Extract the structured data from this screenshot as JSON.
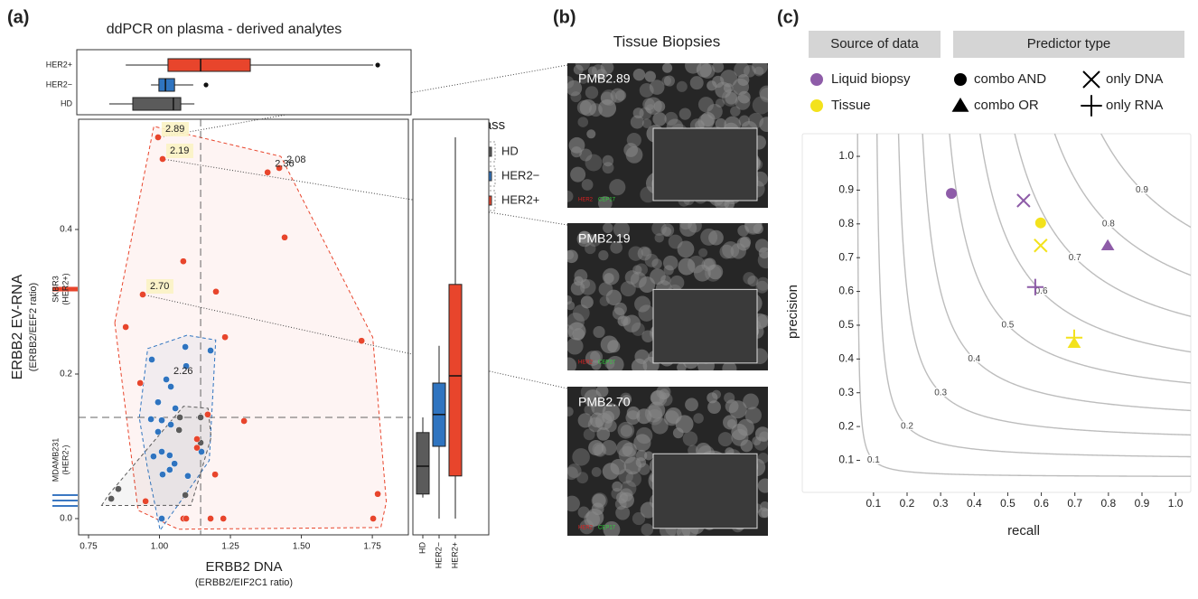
{
  "panel_labels": [
    "(a)",
    "(b)",
    "(c)"
  ],
  "chart_data": [
    {
      "type": "scatter",
      "title": "ddPCR on plasma - derived analytes",
      "x_label": "ERBB2 DNA",
      "x_sublabel": "(ERBB2/EIF2C1 ratio)",
      "y_label": "ERBB2 EV-RNA",
      "y_sublabel": "(ERBB2/EEF2 ratio)",
      "xlim": [
        0.715,
        1.877
      ],
      "ylim": [
        -0.0225,
        0.5525
      ],
      "xticks": [
        0.75,
        {
          "value": 1,
          "label": "1.00"
        },
        1.25,
        {
          "value": 1.5,
          "label": "1.50"
        },
        1.75
      ],
      "yticks": [
        {
          "value": 0,
          "label": "0.0"
        },
        0.2,
        0.4
      ],
      "threshold_x": 1.145,
      "threshold_y": 0.14,
      "legend_title": "class",
      "series": [
        {
          "name": "HD",
          "color": "#5b5b5b",
          "x": [
            1.072,
            1.145,
            1.069,
            1.145,
            0.855,
            0.83,
            1.091
          ],
          "values": [
            0.14,
            0.14,
            0.1225,
            0.105,
            0.041,
            0.0275,
            0.0325
          ],
          "point_labels": [
            null,
            null,
            null,
            null,
            null,
            null,
            null
          ]
        },
        {
          "name": "HER2−",
          "color": "#2f74c0",
          "x": [
            1.091,
            1.18,
            0.973,
            1.094,
            1.024,
            1.04,
            0.995,
            1.056,
            0.97,
            1.008,
            1.04,
            0.995,
            1.008,
            1.036,
            0.979,
            1.053,
            1.011,
            1.036,
            1.008,
            1.148,
            1.1
          ],
          "values": [
            0.2375,
            0.2325,
            0.22,
            0.211,
            0.1925,
            0.1825,
            0.161,
            0.1525,
            0.1375,
            0.136,
            0.13,
            0.12,
            0.0925,
            0.0875,
            0.086,
            0.076,
            0.061,
            0.0675,
            0.0,
            0.0925,
            0.059
          ],
          "point_labels": [
            null,
            null,
            null,
            null,
            "2.26",
            null,
            null,
            null,
            null,
            null,
            null,
            null,
            null,
            null,
            null,
            null,
            null,
            null,
            null,
            null,
            null
          ]
        },
        {
          "name": "HER2+",
          "color": "#e8452c",
          "x": [
            0.995,
            1.011,
            1.381,
            1.422,
            1.441,
            1.084,
            0.941,
            1.199,
            0.881,
            1.231,
            1.712,
            0.932,
            1.17,
            1.298,
            1.132,
            1.132,
            1.196,
            0.951,
            1.084,
            1.094,
            1.18,
            1.225,
            1.769,
            1.753
          ],
          "values": [
            0.5275,
            0.4975,
            0.479,
            0.485,
            0.389,
            0.356,
            0.31,
            0.314,
            0.265,
            0.251,
            0.246,
            0.1875,
            0.144,
            0.135,
            0.11,
            0.098,
            0.061,
            0.024,
            0.0,
            0.0,
            0.0,
            0.0,
            0.034,
            0.0
          ],
          "point_labels": [
            "2.89",
            "2.19",
            "2.36",
            "2.08",
            null,
            null,
            "2.70",
            null,
            null,
            null,
            null,
            null,
            null,
            null,
            null,
            null,
            null,
            null,
            null,
            null,
            null,
            null,
            null,
            null
          ]
        }
      ],
      "reference_lines": [
        {
          "name": "SKBR3",
          "note": "(HER2+)",
          "color": "#e8452c",
          "values": [
            0.3175
          ]
        },
        {
          "name": "MDAMB231",
          "note": "(HER2-)",
          "color": "#3b78c2",
          "values": [
            0.0325,
            0.025,
            0.0175
          ]
        }
      ]
    },
    {
      "type": "box",
      "orientation": "horizontal",
      "xlim": [
        0.715,
        1.877
      ],
      "series": [
        {
          "name": "HD",
          "color": "#5b5b5b",
          "min": 0.823,
          "q1": 0.906,
          "median": 1.049,
          "q3": 1.075,
          "max": 1.123,
          "outliers": []
        },
        {
          "name": "HER2−",
          "color": "#2f74c0",
          "min": 0.97,
          "q1": 0.998,
          "median": 1.021,
          "q3": 1.053,
          "max": 1.119,
          "outliers": [
            1.164
          ]
        },
        {
          "name": "HER2+",
          "color": "#e8452c",
          "min": 0.881,
          "q1": 1.03,
          "median": 1.145,
          "q3": 1.32,
          "max": 1.753,
          "outliers": [
            1.769
          ]
        }
      ]
    },
    {
      "type": "box",
      "orientation": "vertical",
      "ylim": [
        -0.0225,
        0.5525
      ],
      "series": [
        {
          "name": "HD",
          "color": "#5b5b5b",
          "min": 0.029,
          "q1": 0.034,
          "median": 0.0725,
          "q3": 0.119,
          "max": 0.14,
          "outliers": []
        },
        {
          "name": "HER2−",
          "color": "#2f74c0",
          "min": 0.0,
          "q1": 0.1,
          "median": 0.144,
          "q3": 0.1875,
          "max": 0.239,
          "outliers": []
        },
        {
          "name": "HER2+",
          "color": "#e8452c",
          "min": 0.0,
          "q1": 0.059,
          "median": 0.1975,
          "q3": 0.324,
          "max": 0.5275,
          "outliers": []
        }
      ]
    },
    {
      "type": "scatter",
      "x_label": "recall",
      "y_label": "precision",
      "xlim": [
        0.06,
        1.04
      ],
      "ylim": [
        0.005,
        1.067
      ],
      "xticks": [
        0.1,
        0.2,
        0.3,
        0.4,
        0.5,
        0.6,
        0.7,
        0.8,
        0.9,
        {
          "value": 1,
          "label": "1.0"
        }
      ],
      "yticks": [
        0.1,
        0.2,
        0.3,
        0.4,
        0.5,
        0.6,
        0.7,
        0.8,
        0.9,
        {
          "value": 1,
          "label": "1.0"
        }
      ],
      "contour_levels": [
        0.1,
        0.2,
        0.3,
        0.4,
        0.5,
        0.6,
        0.7,
        0.8,
        0.9
      ],
      "legend_headers": [
        "Source of data",
        "Predictor type"
      ],
      "sources": [
        {
          "name": "Liquid biopsy",
          "color": "#8e5ca8"
        },
        {
          "name": "Tissue",
          "color": "#f3e21c"
        }
      ],
      "predictor_types": [
        {
          "name": "combo AND",
          "shape": "circle"
        },
        {
          "name": "combo OR",
          "shape": "triangle"
        },
        {
          "name": "only DNA",
          "shape": "x"
        },
        {
          "name": "only RNA",
          "shape": "plus"
        }
      ],
      "points": [
        {
          "source": "Liquid biopsy",
          "type": "combo AND",
          "x": 0.332,
          "y": 0.89
        },
        {
          "source": "Liquid biopsy",
          "type": "only DNA",
          "x": 0.547,
          "y": 0.869
        },
        {
          "source": "Liquid biopsy",
          "type": "only RNA",
          "x": 0.582,
          "y": 0.613
        },
        {
          "source": "Liquid biopsy",
          "type": "combo OR",
          "x": 0.798,
          "y": 0.736
        },
        {
          "source": "Tissue",
          "type": "combo AND",
          "x": 0.598,
          "y": 0.803
        },
        {
          "source": "Tissue",
          "type": "only DNA",
          "x": 0.598,
          "y": 0.736
        },
        {
          "source": "Tissue",
          "type": "only RNA",
          "x": 0.698,
          "y": 0.463
        },
        {
          "source": "Tissue",
          "type": "combo OR",
          "x": 0.698,
          "y": 0.447
        }
      ]
    }
  ],
  "biopsies": {
    "title": "Tissue Biopsies",
    "images": [
      {
        "label": "PMB2.89",
        "stain1": "HER2",
        "stain2": "CEP17"
      },
      {
        "label": "PMB2.19",
        "stain1": "HER2",
        "stain2": "CEP17"
      },
      {
        "label": "PMB2.70",
        "stain1": "HER2",
        "stain2": "CEP17"
      }
    ]
  }
}
